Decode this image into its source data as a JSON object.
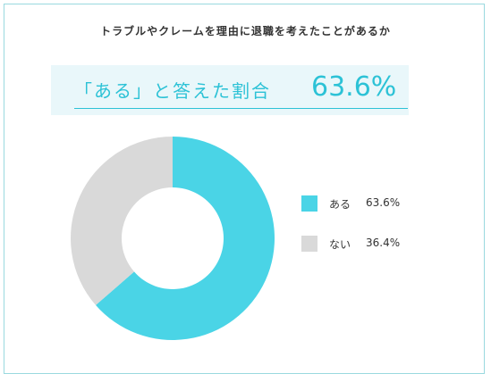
{
  "title": "トラブルやクレームを理由に退職を考えたことがあるか",
  "banner": {
    "label": "「ある」と答えた割合",
    "value": "63.6%"
  },
  "colors": {
    "accent": "#2cc2d6",
    "aru": "#4ad4e6",
    "nai": "#d9d9d9",
    "frame": "#9ad9df",
    "banner_bg": "#e9f7fa"
  },
  "chart_data": {
    "type": "pie",
    "donut": true,
    "title": "トラブルやクレームを理由に退職を考えたことがあるか",
    "categories": [
      "ある",
      "ない"
    ],
    "values": [
      63.6,
      36.4
    ],
    "value_labels": [
      "63.6%",
      "36.4%"
    ],
    "colors": [
      "#4ad4e6",
      "#d9d9d9"
    ],
    "start": "12 o'clock",
    "direction": "clockwise",
    "legend_placement": "right"
  }
}
